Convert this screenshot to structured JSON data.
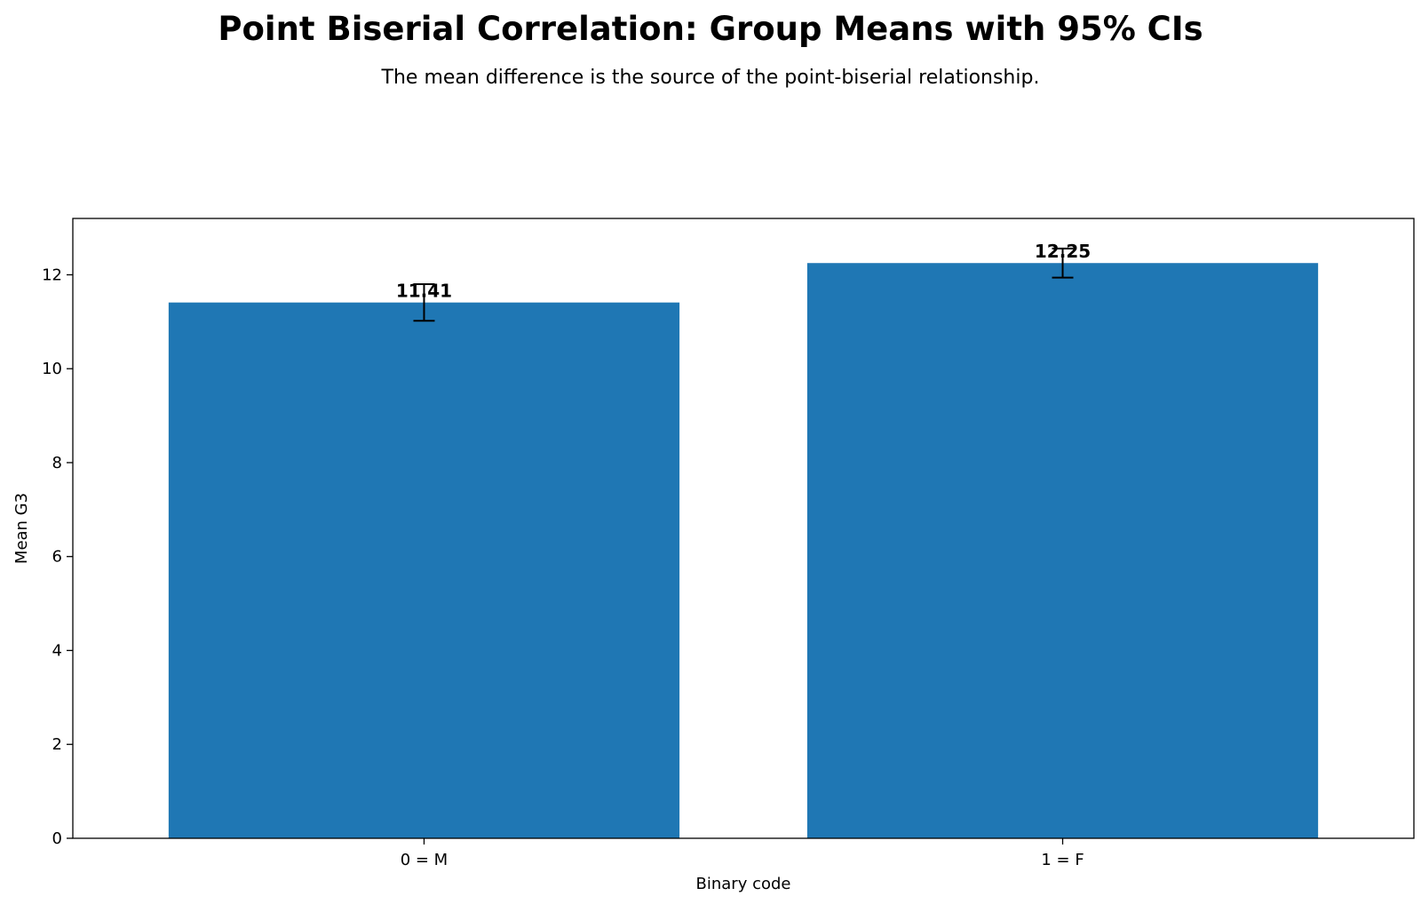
{
  "chart_data": {
    "type": "bar",
    "title": "Point Biserial Correlation: Group Means with 95% CIs",
    "subtitle": "The mean difference is the source of the point-biserial relationship.",
    "xlabel": "Binary code",
    "ylabel": "Mean G3",
    "categories": [
      "0 = M",
      "1 = F"
    ],
    "values": [
      11.41,
      12.25
    ],
    "value_labels": [
      "11.41",
      "12.25"
    ],
    "ci_lower": [
      11.02,
      11.94
    ],
    "ci_upper": [
      11.8,
      12.56
    ],
    "ylim": [
      0,
      13.2
    ],
    "yticks": [
      0,
      2,
      4,
      6,
      8,
      10,
      12
    ],
    "ytick_labels": [
      "0",
      "2",
      "4",
      "6",
      "8",
      "10",
      "12"
    ],
    "grid": false,
    "bar_color": "#1f77b4",
    "errorbar_color": "#000000"
  }
}
